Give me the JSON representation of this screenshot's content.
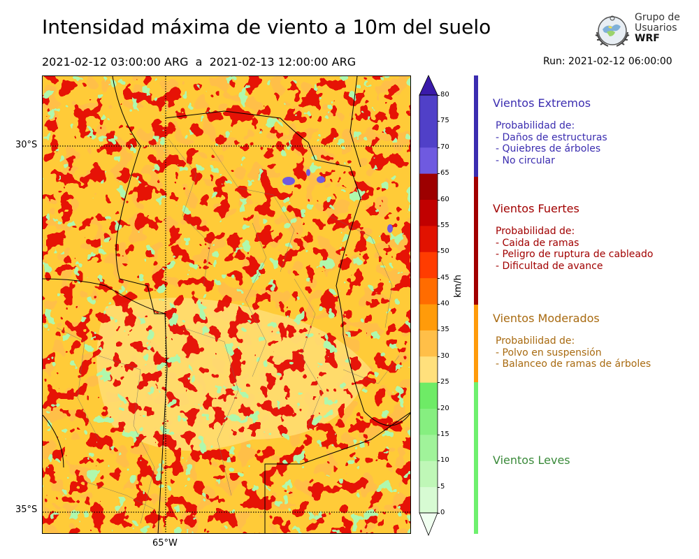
{
  "title": "Intensidad máxima de viento a 10m del suelo",
  "period": "2021-02-12 03:00:00 ARG  a  2021-02-13 12:00:00 ARG",
  "run": "Run: 2021-02-12 06:00:00",
  "logo": {
    "line1": "Grupo de",
    "line2": "Usuarios",
    "line3": "WRF"
  },
  "map": {
    "lat_labels": [
      "30°S",
      "35°S"
    ],
    "lon_labels": [
      "65°W"
    ],
    "grid": "dotted"
  },
  "colorbar": {
    "unit": "km/h",
    "ticks": [
      "0",
      "5",
      "10",
      "15",
      "20",
      "25",
      "30",
      "35",
      "40",
      "45",
      "50",
      "55",
      "60",
      "65",
      "70",
      "75",
      "80"
    ],
    "colors": [
      "#f0fff0",
      "#d7fbd3",
      "#bff7b7",
      "#a0f39a",
      "#86ef80",
      "#6eeb66",
      "#ffe07c",
      "#ffbf48",
      "#ff9b0a",
      "#ff6c00",
      "#ff3c00",
      "#e11200",
      "#c10000",
      "#9d0000",
      "#6f5ae0",
      "#5040c8",
      "#3a1aaa"
    ]
  },
  "categories": [
    {
      "name": "Vientos Extremos",
      "color": "#3b2db0",
      "bar_color": "#3b2db0",
      "lines": [
        "Probabilidad de:",
        "- Daños de estructuras",
        "- Quiebres de árboles",
        "- No circular"
      ]
    },
    {
      "name": "Vientos Fuertes",
      "color": "#a10000",
      "bar_color": "#a10000",
      "lines": [
        "Probabilidad de:",
        "- Caida de ramas",
        "- Peligro de ruptura de cableado",
        "- Dificultad de avance"
      ]
    },
    {
      "name": "Vientos Moderados",
      "color": "#a86a10",
      "bar_color": "#ff9b0a",
      "lines": [
        "Probabilidad de:",
        "- Polvo en suspensión",
        "- Balanceo de ramas de árboles"
      ]
    },
    {
      "name": "Vientos Leves",
      "color": "#3a8a3a",
      "bar_color": "#6ef06e",
      "lines": []
    }
  ]
}
